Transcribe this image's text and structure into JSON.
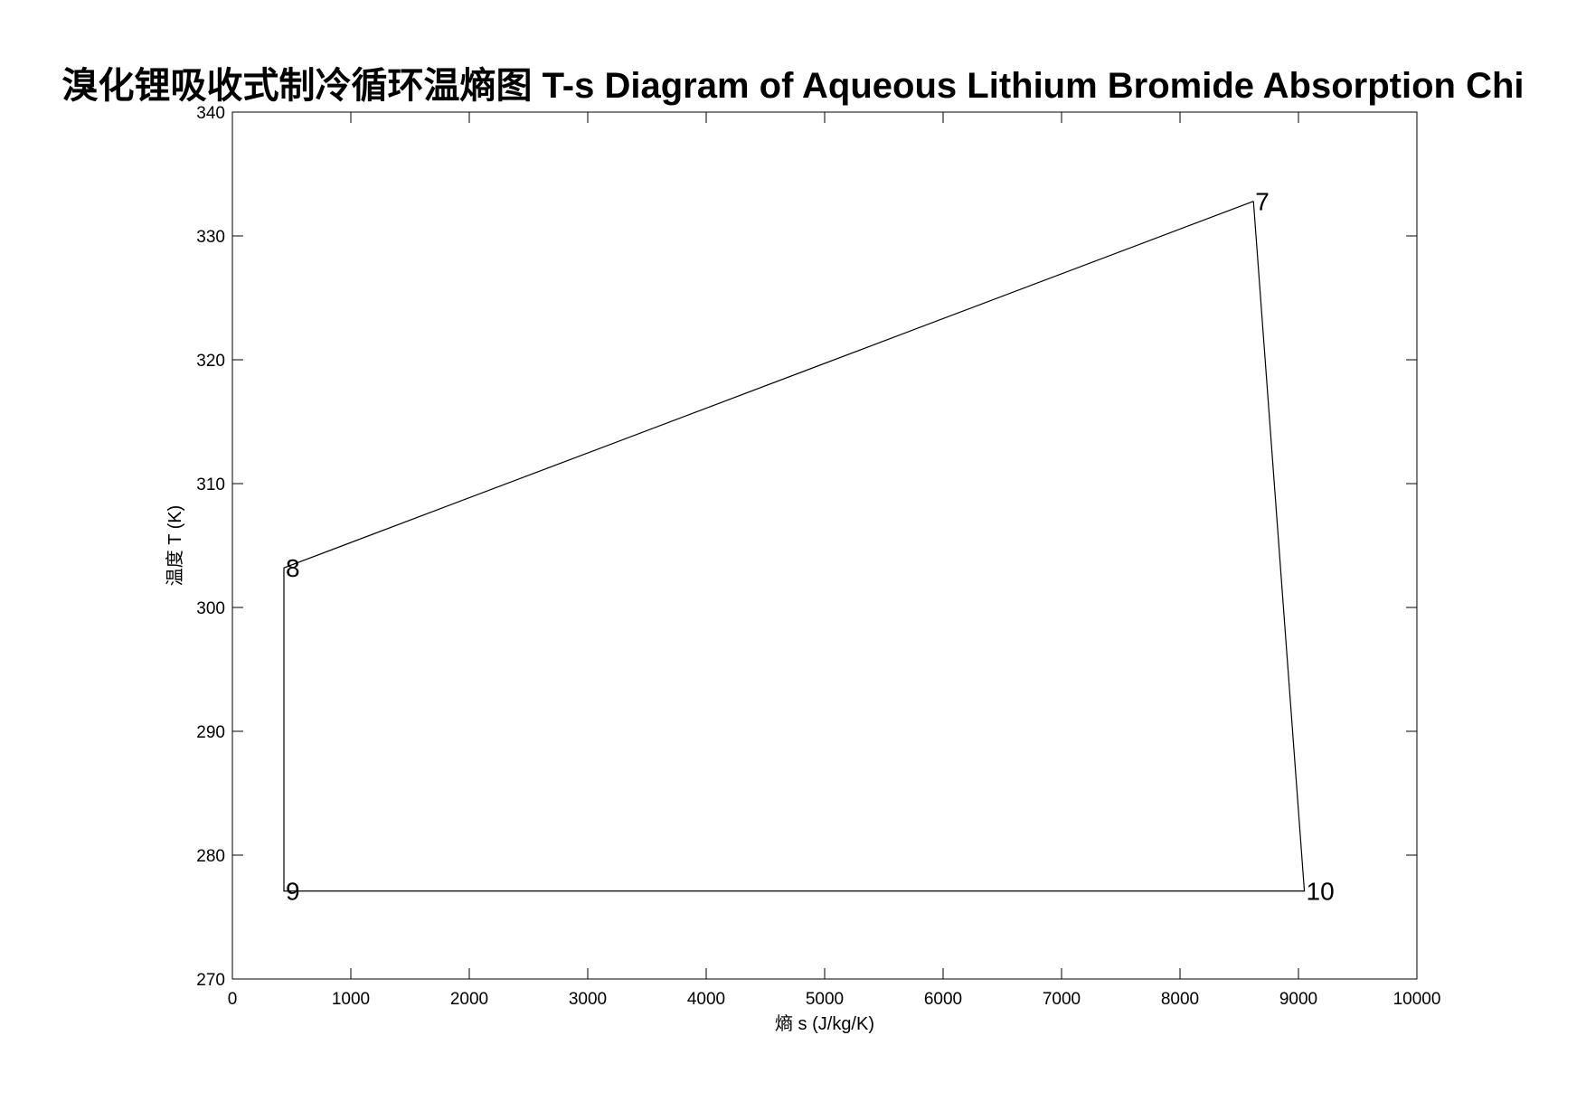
{
  "chart_data": {
    "type": "line",
    "title": "溴化锂吸收式制冷循环温熵图 T-s Diagram of Aqueous Lithium Bromide Absorption Chi",
    "xlabel": "熵 s (J/kg/K)",
    "ylabel": "温度 T (K)",
    "xlim": [
      0,
      10000
    ],
    "ylim": [
      270,
      340
    ],
    "x_ticks": [
      0,
      1000,
      2000,
      3000,
      4000,
      5000,
      6000,
      7000,
      8000,
      9000,
      10000
    ],
    "y_ticks": [
      270,
      280,
      290,
      300,
      310,
      320,
      330,
      340
    ],
    "x_tick_labels": [
      "0",
      "1000",
      "2000",
      "3000",
      "4000",
      "5000",
      "6000",
      "7000",
      "8000",
      "9000",
      "10000"
    ],
    "y_tick_labels": [
      "270",
      "280",
      "290",
      "300",
      "310",
      "320",
      "330",
      "340"
    ],
    "grid": false,
    "line_color": "#000000",
    "series": [
      {
        "x": [
          8620,
          435,
          435,
          9050,
          8620
        ],
        "y": [
          332.8,
          303.2,
          277.1,
          277.1,
          332.8
        ]
      }
    ],
    "points": [
      {
        "label": "7",
        "s": 8620,
        "T": 332.8
      },
      {
        "label": "8",
        "s": 435,
        "T": 303.2
      },
      {
        "label": "9",
        "s": 435,
        "T": 277.1
      },
      {
        "label": "10",
        "s": 9050,
        "T": 277.1
      }
    ]
  }
}
